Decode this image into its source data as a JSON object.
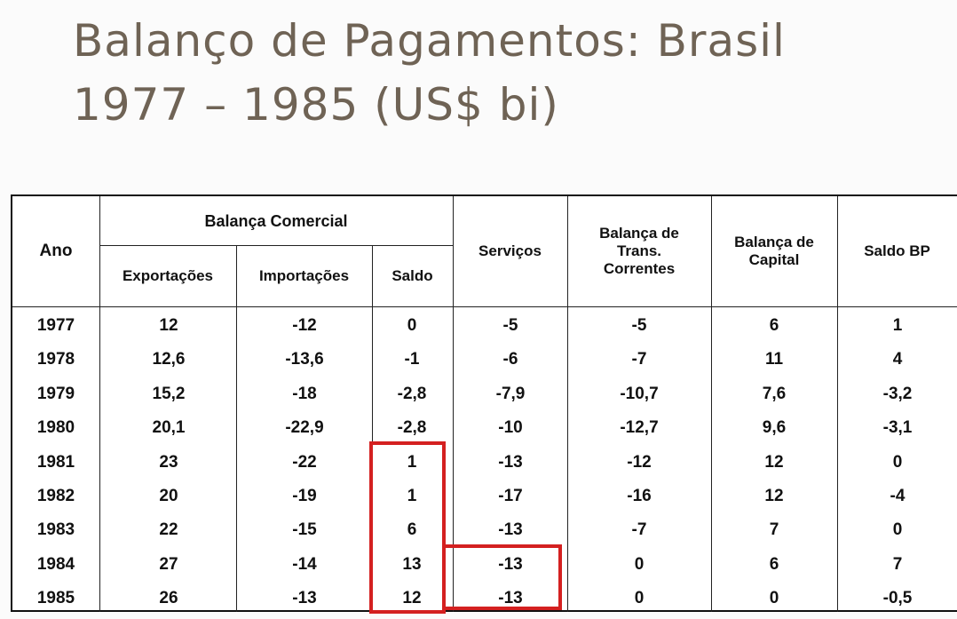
{
  "slide": {
    "title_line1": "Balanço de Pagamentos: Brasil",
    "title_line2": "1977 – 1985 (US$ bi)"
  },
  "table": {
    "headers": {
      "ano": "Ano",
      "balanca_comercial": "Balança Comercial",
      "exportacoes": "Exportações",
      "importacoes": "Importações",
      "saldo": "Saldo",
      "servicos": "Serviços",
      "trans_correntes_1": "Balança de",
      "trans_correntes_2": "Trans.",
      "trans_correntes_3": "Correntes",
      "capital_1": "Balança de",
      "capital_2": "Capital",
      "saldo_bp": "Saldo BP"
    },
    "rows": [
      {
        "ano": "1977",
        "exp": "12",
        "imp": "-12",
        "saldo": "0",
        "serv": "-5",
        "trans": "-5",
        "cap": "6",
        "bp": "1"
      },
      {
        "ano": "1978",
        "exp": "12,6",
        "imp": "-13,6",
        "saldo": "-1",
        "serv": "-6",
        "trans": "-7",
        "cap": "11",
        "bp": "4"
      },
      {
        "ano": "1979",
        "exp": "15,2",
        "imp": "-18",
        "saldo": "-2,8",
        "serv": "-7,9",
        "trans": "-10,7",
        "cap": "7,6",
        "bp": "-3,2"
      },
      {
        "ano": "1980",
        "exp": "20,1",
        "imp": "-22,9",
        "saldo": "-2,8",
        "serv": "-10",
        "trans": "-12,7",
        "cap": "9,6",
        "bp": "-3,1"
      },
      {
        "ano": "1981",
        "exp": "23",
        "imp": "-22",
        "saldo": "1",
        "serv": "-13",
        "trans": "-12",
        "cap": "12",
        "bp": "0"
      },
      {
        "ano": "1982",
        "exp": "20",
        "imp": "-19",
        "saldo": "1",
        "serv": "-17",
        "trans": "-16",
        "cap": "12",
        "bp": "-4"
      },
      {
        "ano": "1983",
        "exp": "22",
        "imp": "-15",
        "saldo": "6",
        "serv": "-13",
        "trans": "-7",
        "cap": "7",
        "bp": "0"
      },
      {
        "ano": "1984",
        "exp": "27",
        "imp": "-14",
        "saldo": "13",
        "serv": "-13",
        "trans": "0",
        "cap": "6",
        "bp": "7"
      },
      {
        "ano": "1985",
        "exp": "26",
        "imp": "-13",
        "saldo": "12",
        "serv": "-13",
        "trans": "0",
        "cap": "0",
        "bp": "-0,5"
      }
    ]
  },
  "colors": {
    "title": "#6f6355",
    "highlight": "#d42020",
    "text": "#111111"
  }
}
